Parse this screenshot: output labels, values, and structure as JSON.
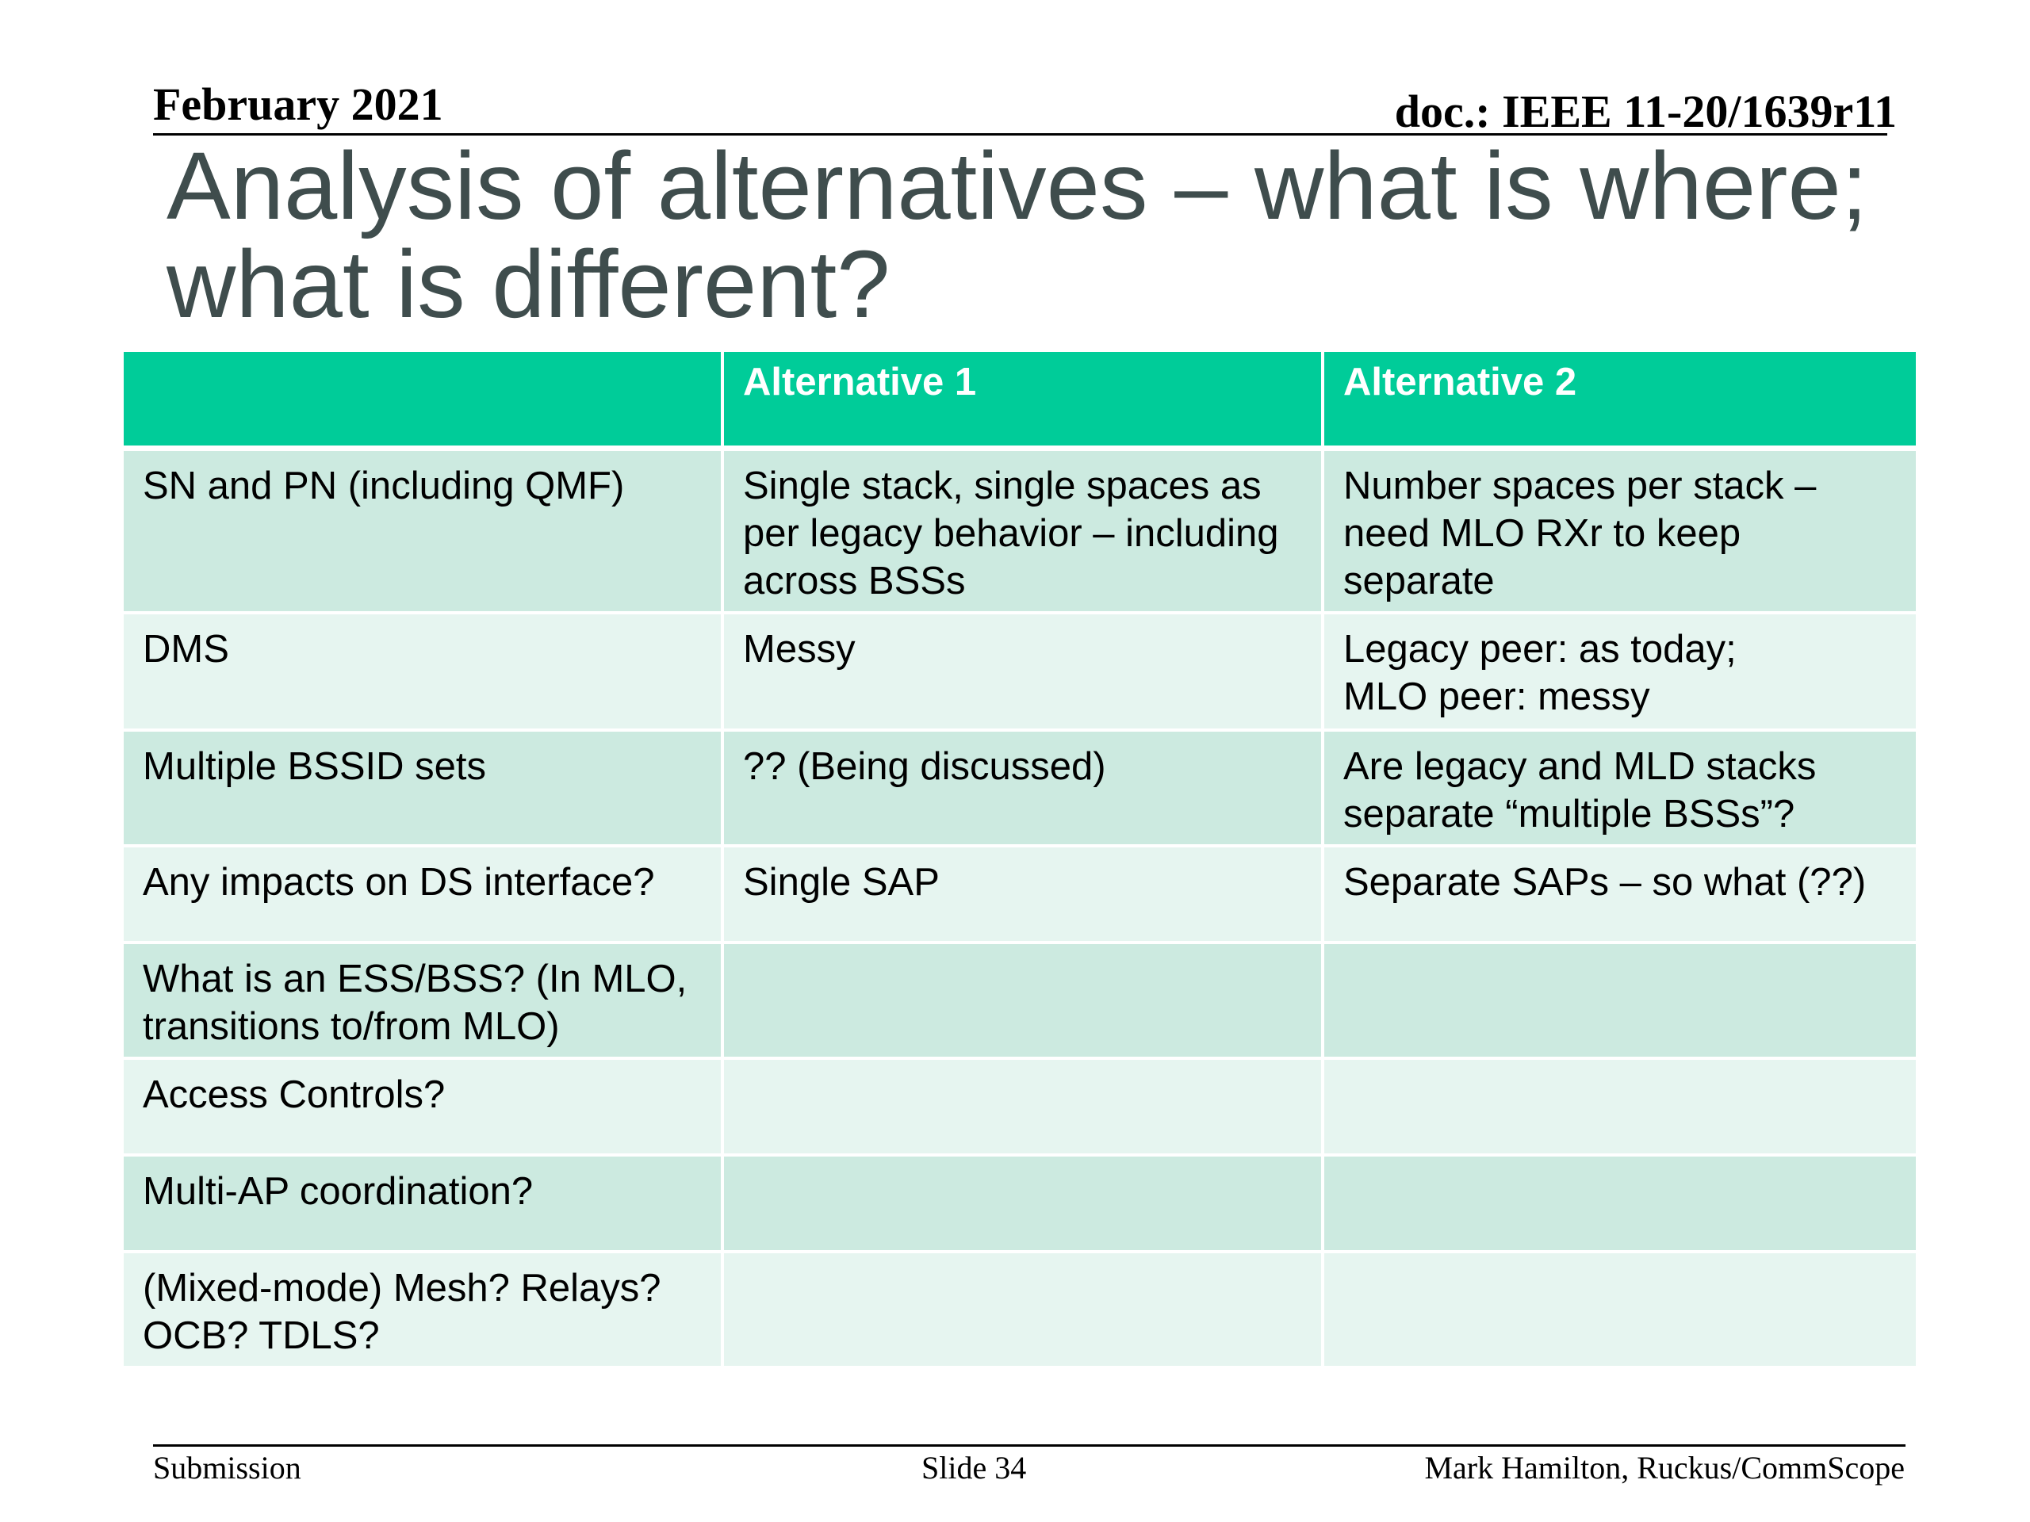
{
  "header": {
    "date": "February 2021",
    "doc_id": "doc.: IEEE 11-20/1639r11"
  },
  "title": "Analysis of alternatives – what is where; what is different?",
  "table": {
    "columns": [
      "",
      "Alternative 1",
      "Alternative 2"
    ],
    "rows": [
      [
        "SN and PN (including QMF)",
        "Single stack, single spaces as per legacy behavior – including across BSSs",
        "Number spaces per stack – need MLO RXr to keep separate"
      ],
      [
        "DMS",
        "Messy",
        "Legacy peer: as today;\nMLO peer: messy"
      ],
      [
        "Multiple BSSID sets",
        "?? (Being discussed)",
        "Are legacy and MLD stacks separate “multiple BSSs”?"
      ],
      [
        "Any impacts on DS interface?",
        "Single SAP",
        "Separate SAPs – so what (??)"
      ],
      [
        "What is an ESS/BSS?  (In MLO, transitions to/from MLO)",
        "",
        ""
      ],
      [
        "Access Controls?",
        "",
        ""
      ],
      [
        "Multi-AP coordination?",
        "",
        ""
      ],
      [
        "(Mixed-mode) Mesh?  Relays?  OCB?  TDLS?",
        "",
        ""
      ]
    ]
  },
  "footer": {
    "left": "Submission",
    "center": "Slide 34",
    "right": "Mark Hamilton, Ruckus/CommScope"
  },
  "colors": {
    "header_fill": "#00cc99",
    "row_dark": "#cceae0",
    "row_light": "#e6f5f0",
    "title_text": "#3f4d4d"
  }
}
